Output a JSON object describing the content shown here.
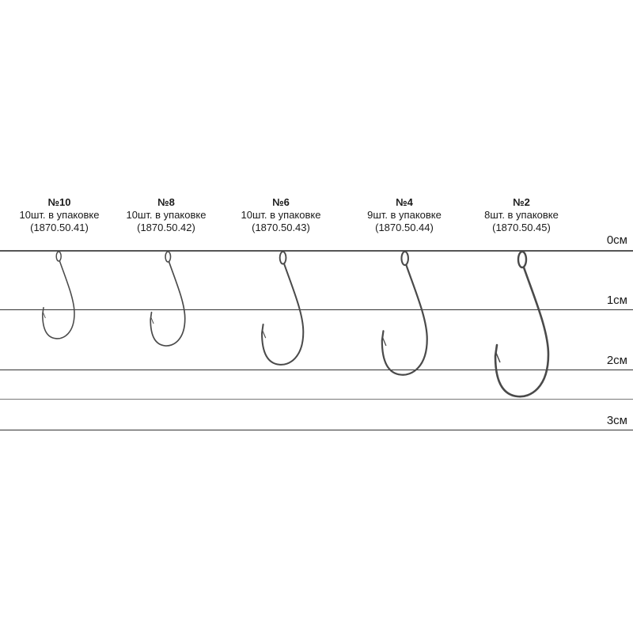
{
  "hooks": [
    {
      "number": "№10",
      "qty": "10шт. в упаковке",
      "code": "(1870.50.41)"
    },
    {
      "number": "№8",
      "qty": "10шт. в упаковке",
      "code": "(1870.50.42)"
    },
    {
      "number": "№6",
      "qty": "10шт. в упаковке",
      "code": "(1870.50.43)"
    },
    {
      "number": "№4",
      "qty": "9шт. в упаковке",
      "code": "(1870.50.44)"
    },
    {
      "number": "№2",
      "qty": "8шт. в упаковке",
      "code": "(1870.50.45)"
    }
  ],
  "scale": [
    "0см",
    "1см",
    "2см",
    "3см"
  ],
  "colors": {
    "line": "#333333",
    "hook": "#4a4a4a"
  }
}
